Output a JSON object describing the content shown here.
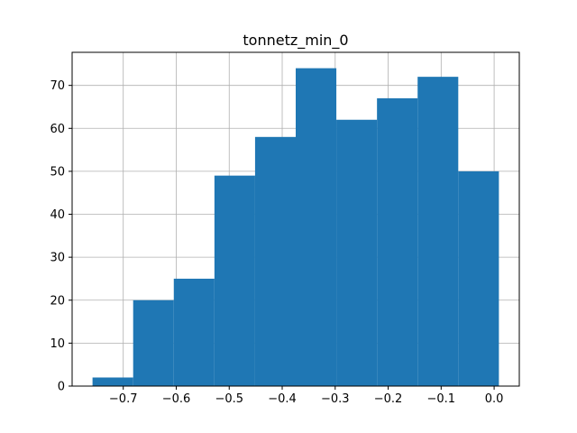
{
  "chart_data": {
    "type": "bar",
    "title": "tonnetz_min_0",
    "xlabel": "",
    "ylabel": "",
    "bin_edges": [
      -0.758,
      -0.6813,
      -0.6046,
      -0.5279,
      -0.4512,
      -0.3745,
      -0.2978,
      -0.2211,
      -0.1444,
      -0.0677,
      0.009
    ],
    "values": [
      2,
      20,
      25,
      49,
      58,
      74,
      62,
      67,
      72,
      50
    ],
    "xlim": [
      -0.7965,
      0.0475
    ],
    "ylim": [
      0,
      77.7
    ],
    "x_ticks": [
      -0.7,
      -0.6,
      -0.5,
      -0.4,
      -0.3,
      -0.2,
      -0.1,
      0.0
    ],
    "x_tick_labels": [
      "−0.7",
      "−0.6",
      "−0.5",
      "−0.4",
      "−0.3",
      "−0.2",
      "−0.1",
      "0.0"
    ],
    "y_ticks": [
      0,
      10,
      20,
      30,
      40,
      50,
      60,
      70
    ],
    "y_tick_labels": [
      "0",
      "10",
      "20",
      "30",
      "40",
      "50",
      "60",
      "70"
    ],
    "grid": true,
    "colors": {
      "bar": "#1f77b4",
      "grid": "#b0b0b0"
    }
  }
}
